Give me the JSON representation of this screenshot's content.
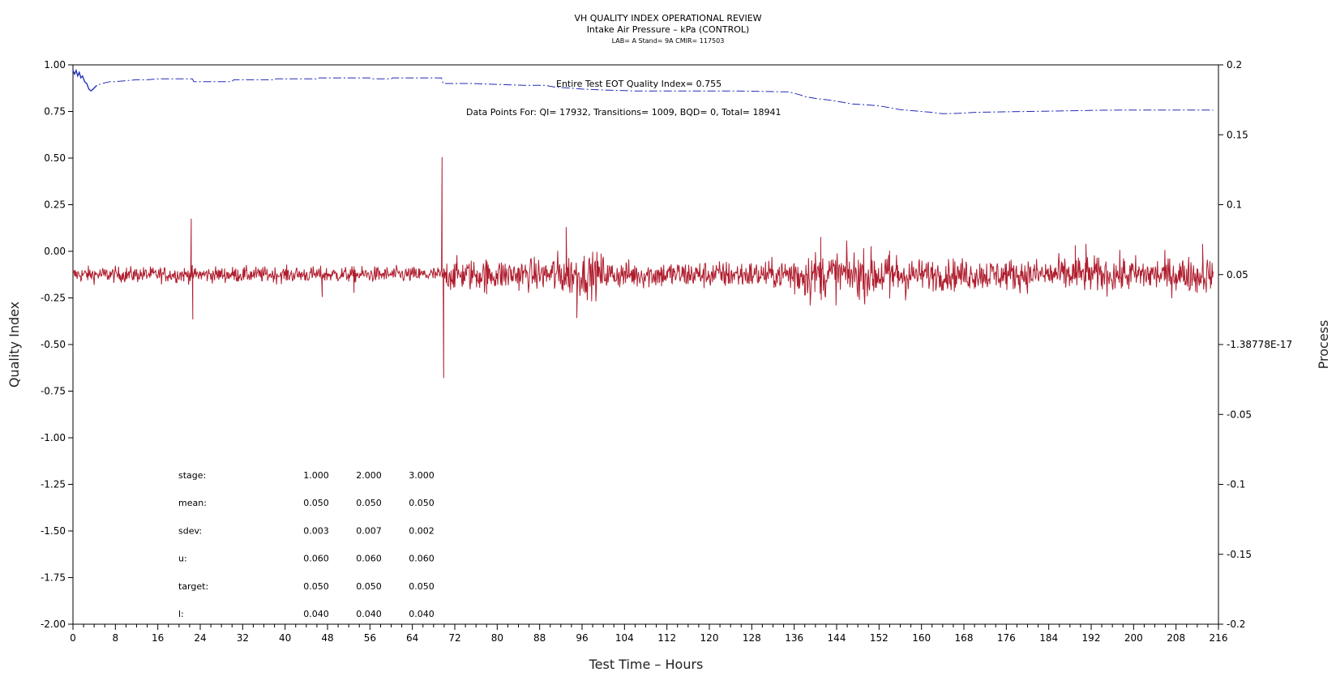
{
  "chart_data": {
    "type": "line",
    "title": "VH QUALITY INDEX OPERATIONAL REVIEW",
    "subtitle": "Intake Air Pressure – kPa (CONTROL)",
    "subtitle2": "LAB= A Stand= 9A CMIR= 117503",
    "xlabel": "Test Time – Hours",
    "ylabel": "Quality Index",
    "y2label": "Process",
    "xlim": [
      0,
      216
    ],
    "ylim": [
      -2.0,
      1.0
    ],
    "y2lim": [
      -0.2,
      0.2
    ],
    "x_ticks": [
      "0",
      "8",
      "16",
      "24",
      "32",
      "40",
      "48",
      "56",
      "64",
      "72",
      "80",
      "88",
      "96",
      "104",
      "112",
      "120",
      "128",
      "136",
      "144",
      "152",
      "160",
      "168",
      "176",
      "184",
      "192",
      "200",
      "208",
      "216"
    ],
    "y_ticks": [
      "1.00",
      "0.75",
      "0.50",
      "0.25",
      "0.00",
      "-0.25",
      "-0.50",
      "-0.75",
      "-1.00",
      "-1.25",
      "-1.50",
      "-1.75",
      "-2.00"
    ],
    "y2_ticks": [
      "0.2",
      "0.15",
      "0.1",
      "0.05",
      "-1.38778E-17",
      "-0.05",
      "-0.1",
      "-0.15",
      "-0.2"
    ],
    "annotations": {
      "eot_qi": "Entire Test EOT Quality Index=   0.755",
      "data_points": "Data Points For: QI= 17932, Transitions=  1009, BQD=     0, Total= 18941"
    },
    "series": [
      {
        "name": "Quality Index",
        "color": "#1f2bb5",
        "axis": "left",
        "points": [
          [
            0,
            0.97
          ],
          [
            0.3,
            0.95
          ],
          [
            0.6,
            0.97
          ],
          [
            0.9,
            0.94
          ],
          [
            1.2,
            0.96
          ],
          [
            1.5,
            0.93
          ],
          [
            1.8,
            0.94
          ],
          [
            2.2,
            0.91
          ],
          [
            2.6,
            0.9
          ],
          [
            3,
            0.87
          ],
          [
            3.4,
            0.86
          ],
          [
            3.8,
            0.87
          ],
          [
            4.5,
            0.89
          ],
          [
            5.5,
            0.9
          ],
          [
            7,
            0.91
          ],
          [
            8,
            0.91
          ],
          [
            10,
            0.915
          ],
          [
            12,
            0.92
          ],
          [
            14,
            0.92
          ],
          [
            16,
            0.925
          ],
          [
            18,
            0.925
          ],
          [
            20,
            0.925
          ],
          [
            22.5,
            0.925
          ],
          [
            22.8,
            0.91
          ],
          [
            30,
            0.91
          ],
          [
            30.3,
            0.92
          ],
          [
            38,
            0.92
          ],
          [
            38.3,
            0.925
          ],
          [
            46,
            0.925
          ],
          [
            46.3,
            0.93
          ],
          [
            56,
            0.93
          ],
          [
            56.3,
            0.925
          ],
          [
            60,
            0.925
          ],
          [
            60.3,
            0.93
          ],
          [
            69.5,
            0.93
          ],
          [
            69.8,
            0.9
          ],
          [
            75,
            0.9
          ],
          [
            80,
            0.895
          ],
          [
            85,
            0.89
          ],
          [
            89,
            0.89
          ],
          [
            91,
            0.88
          ],
          [
            94,
            0.875
          ],
          [
            96,
            0.87
          ],
          [
            100,
            0.865
          ],
          [
            106,
            0.86
          ],
          [
            115,
            0.86
          ],
          [
            125,
            0.86
          ],
          [
            135,
            0.855
          ],
          [
            137,
            0.84
          ],
          [
            138,
            0.83
          ],
          [
            140,
            0.82
          ],
          [
            143,
            0.81
          ],
          [
            145,
            0.8
          ],
          [
            147,
            0.79
          ],
          [
            150,
            0.785
          ],
          [
            152,
            0.78
          ],
          [
            154,
            0.77
          ],
          [
            156,
            0.76
          ],
          [
            158,
            0.755
          ],
          [
            160,
            0.75
          ],
          [
            162,
            0.745
          ],
          [
            164,
            0.738
          ],
          [
            167,
            0.74
          ],
          [
            170,
            0.745
          ],
          [
            175,
            0.748
          ],
          [
            180,
            0.75
          ],
          [
            185,
            0.752
          ],
          [
            190,
            0.755
          ],
          [
            195,
            0.757
          ],
          [
            200,
            0.758
          ],
          [
            205,
            0.758
          ],
          [
            210,
            0.758
          ],
          [
            214,
            0.758
          ],
          [
            215,
            0.758
          ]
        ]
      },
      {
        "name": "Process",
        "color": "#b01e2f",
        "axis": "right",
        "mean": 0.05,
        "x_range": [
          0,
          215
        ],
        "spikes": [
          [
            22.3,
            0.09
          ],
          [
            22.6,
            0.018
          ],
          [
            69.6,
            0.134
          ],
          [
            69.9,
            -0.024
          ],
          [
            93,
            0.084
          ],
          [
            95,
            0.019
          ],
          [
            78,
            0.036
          ],
          [
            141,
            0.077
          ],
          [
            139,
            0.028
          ],
          [
            154,
            0.033
          ],
          [
            191,
            0.072
          ],
          [
            189,
            0.071
          ],
          [
            213,
            0.072
          ],
          [
            212,
            0.037
          ],
          [
            47,
            0.034
          ],
          [
            53,
            0.037
          ]
        ],
        "noise_sections": [
          [
            0,
            22,
            0.004
          ],
          [
            22,
            70,
            0.004
          ],
          [
            70,
            90,
            0.008
          ],
          [
            90,
            100,
            0.011
          ],
          [
            100,
            134,
            0.007
          ],
          [
            134,
            158,
            0.012
          ],
          [
            158,
            185,
            0.008
          ],
          [
            185,
            215,
            0.009
          ]
        ]
      }
    ],
    "stats_table": {
      "rows": [
        {
          "label": "stage:",
          "values": [
            "1.000",
            "2.000",
            "3.000"
          ]
        },
        {
          "label": "mean:",
          "values": [
            "0.050",
            "0.050",
            "0.050"
          ]
        },
        {
          "label": "sdev:",
          "values": [
            "0.003",
            "0.007",
            "0.002"
          ]
        },
        {
          "label": "u:",
          "values": [
            "0.060",
            "0.060",
            "0.060"
          ]
        },
        {
          "label": "target:",
          "values": [
            "0.050",
            "0.050",
            "0.050"
          ]
        },
        {
          "label": "l:",
          "values": [
            "0.040",
            "0.040",
            "0.040"
          ]
        }
      ]
    }
  }
}
